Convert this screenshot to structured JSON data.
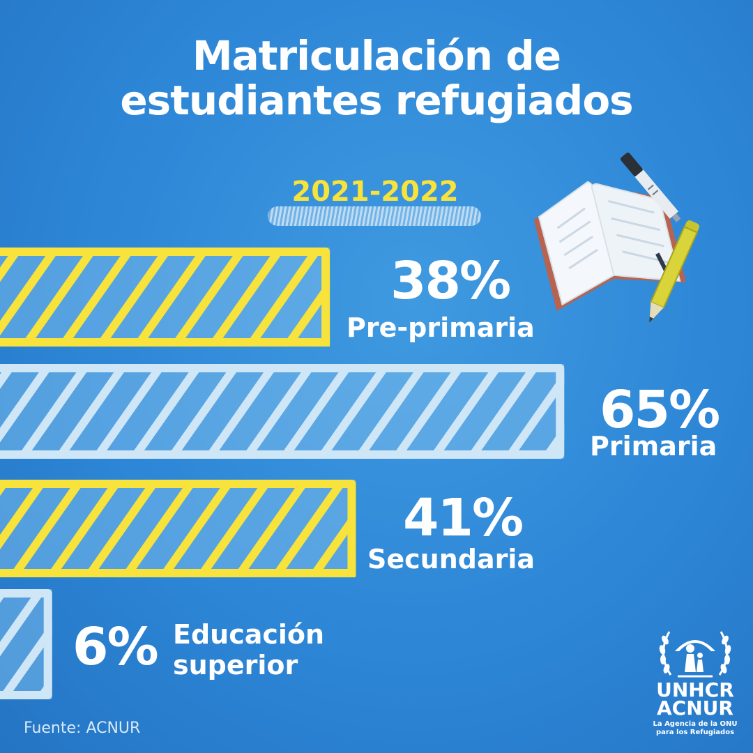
{
  "title": {
    "line1": "Matriculación de",
    "line2": "estudiantes refugiados"
  },
  "period": "2021-2022",
  "source": "Fuente: ACNUR",
  "logo": {
    "name_en": "UNHCR",
    "name_es": "ACNUR",
    "tagline_line1": "La Agencia de la ONU",
    "tagline_line2": "para los Refugiados"
  },
  "colors": {
    "background": "#2d86d6",
    "highlight_bar": "#f7e33b",
    "pale_bar": "#cfe6f7",
    "text": "#ffffff"
  },
  "chart_data": {
    "type": "bar",
    "orientation": "horizontal",
    "title": "Matriculación de estudiantes refugiados",
    "subtitle": "2021-2022",
    "categories": [
      "Pre-primaria",
      "Primaria",
      "Secundaria",
      "Educación superior"
    ],
    "values": [
      38,
      65,
      41,
      6
    ],
    "value_labels": [
      "38%",
      "65%",
      "41%",
      "6%"
    ],
    "category_lines": [
      [
        "Pre-primaria"
      ],
      [
        "Primaria"
      ],
      [
        "Secundaria"
      ],
      [
        "Educación",
        "superior"
      ]
    ],
    "bar_styles": [
      "yellow",
      "pale",
      "yellow",
      "pale"
    ],
    "xlim": [
      0,
      100
    ],
    "grid": false,
    "legend": "none"
  }
}
